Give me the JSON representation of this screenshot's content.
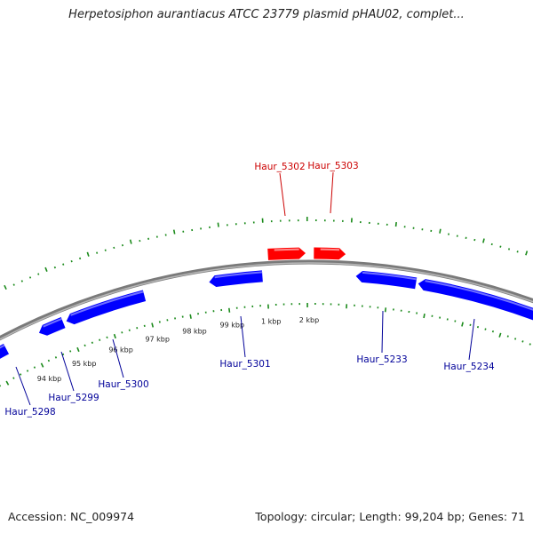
{
  "title": "Herpetosiphon aurantiacus ATCC 23779 plasmid pHAU02, complet...",
  "footer": {
    "accession": "Accession: NC_009974",
    "summary": "Topology: circular; Length: 99,204 bp; Genes: 71"
  },
  "colors": {
    "forward_gene": "#ff0000",
    "reverse_gene": "#0000ff",
    "backbone": "#888888",
    "ticks": "#1a8a1a",
    "label_forward": "#cc0000",
    "label_reverse": "#000099"
  },
  "tick_labels": [
    "94 kbp",
    "95 kbp",
    "96 kbp",
    "97 kbp",
    "98 kbp",
    "99 kbp",
    "1 kbp",
    "2 kbp"
  ],
  "genes": [
    {
      "name": "Haur_5298",
      "strand": "reverse"
    },
    {
      "name": "Haur_5299",
      "strand": "reverse"
    },
    {
      "name": "Haur_5300",
      "strand": "reverse"
    },
    {
      "name": "Haur_5301",
      "strand": "reverse"
    },
    {
      "name": "Haur_5302",
      "strand": "forward"
    },
    {
      "name": "Haur_5303",
      "strand": "forward"
    },
    {
      "name": "Haur_5233",
      "strand": "reverse"
    },
    {
      "name": "Haur_5234",
      "strand": "reverse"
    }
  ]
}
